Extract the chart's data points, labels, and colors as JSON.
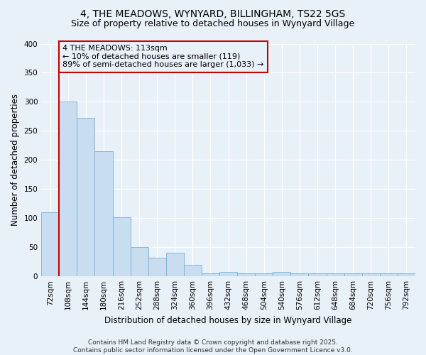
{
  "title_line1": "4, THE MEADOWS, WYNYARD, BILLINGHAM, TS22 5GS",
  "title_line2": "Size of property relative to detached houses in Wynyard Village",
  "xlabel": "Distribution of detached houses by size in Wynyard Village",
  "ylabel": "Number of detached properties",
  "bar_values": [
    110,
    300,
    273,
    215,
    102,
    50,
    32,
    41,
    20,
    5,
    8,
    5,
    5,
    8,
    5,
    5,
    5,
    5,
    5,
    5,
    5
  ],
  "categories": [
    "72sqm",
    "108sqm",
    "144sqm",
    "180sqm",
    "216sqm",
    "252sqm",
    "288sqm",
    "324sqm",
    "360sqm",
    "396sqm",
    "432sqm",
    "468sqm",
    "504sqm",
    "540sqm",
    "576sqm",
    "612sqm",
    "648sqm",
    "684sqm",
    "720sqm",
    "756sqm",
    "792sqm"
  ],
  "bar_color": "#c8ddf0",
  "bar_edge_color": "#7aafd4",
  "background_color": "#e8f0f8",
  "grid_color": "#ffffff",
  "vline_color": "#cc0000",
  "vline_x_index": 1,
  "annotation_text": "4 THE MEADOWS: 113sqm\n← 10% of detached houses are smaller (119)\n89% of semi-detached houses are larger (1,033) →",
  "annotation_box_color": "#cc0000",
  "annotation_text_color": "#000000",
  "ylim": [
    0,
    400
  ],
  "yticks": [
    0,
    50,
    100,
    150,
    200,
    250,
    300,
    350,
    400
  ],
  "footer_text": "Contains HM Land Registry data © Crown copyright and database right 2025.\nContains public sector information licensed under the Open Government Licence v3.0.",
  "title_fontsize": 10,
  "subtitle_fontsize": 9,
  "axis_label_fontsize": 8.5,
  "tick_fontsize": 7.5,
  "annotation_fontsize": 8,
  "footer_fontsize": 6.5
}
